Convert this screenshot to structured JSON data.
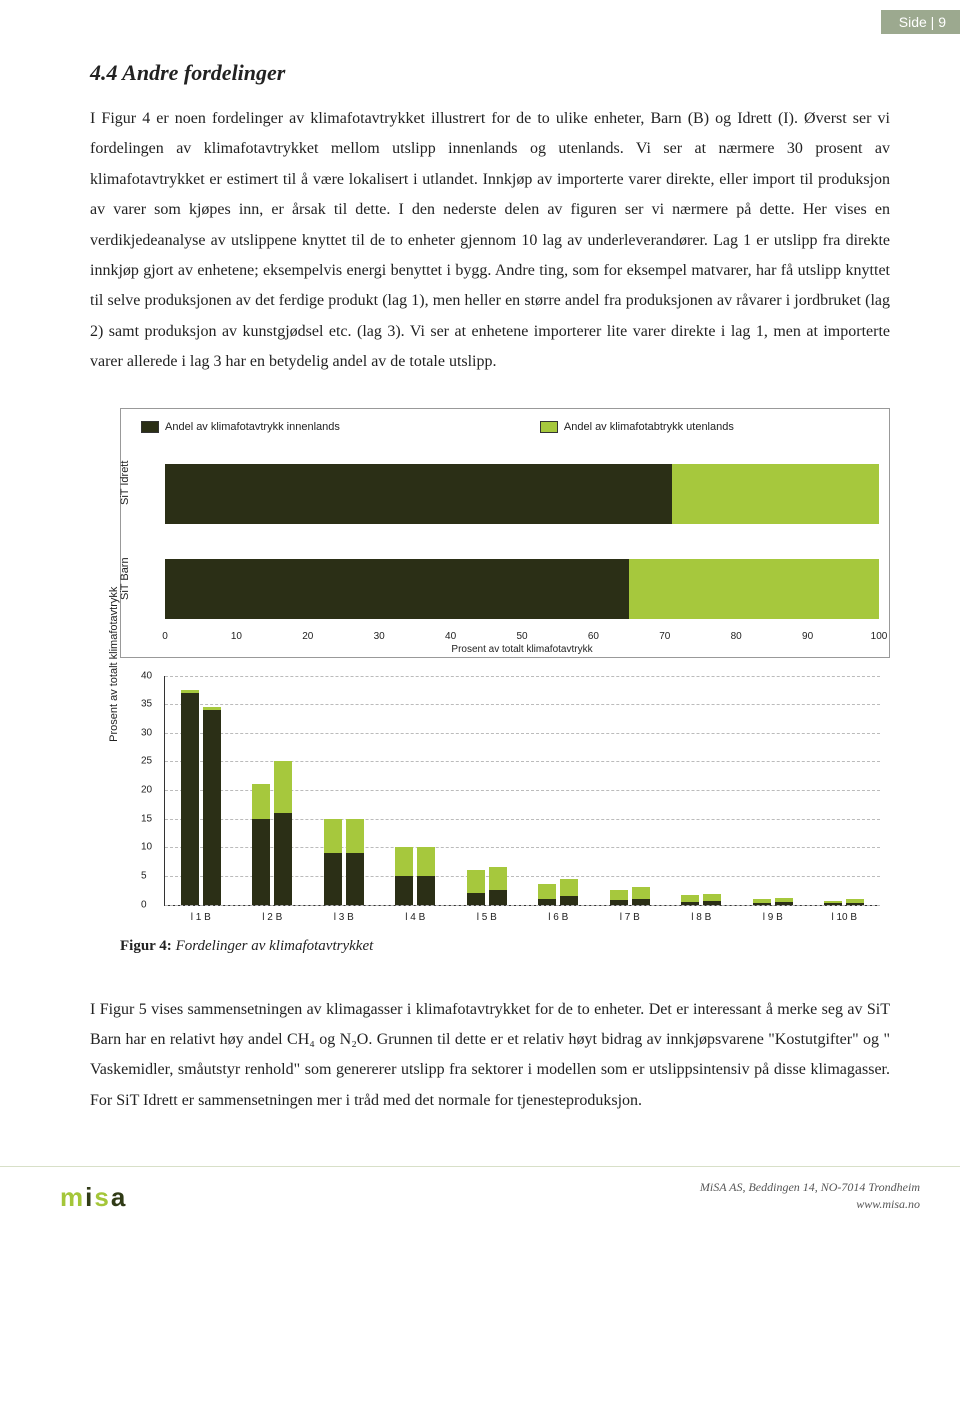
{
  "page_tab": "Side | 9",
  "heading": "4.4 Andre fordelinger",
  "paragraph1": "I Figur 4 er noen fordelinger av klimafotavtrykket illustrert for de to ulike enheter, Barn (B) og Idrett (I). Øverst ser vi fordelingen av klimafotavtrykket mellom utslipp innenlands og utenlands. Vi ser at nærmere 30 prosent av klimafotavtrykket er estimert til å være lokalisert i utlandet. Innkjøp av importerte varer direkte, eller import til produksjon av varer som kjøpes inn, er årsak til dette. I den nederste delen av figuren ser vi nærmere på dette. Her vises en verdikjedeanalyse av utslippene knyttet til de to enheter gjennom 10 lag av underleverandører. Lag 1 er utslipp fra direkte innkjøp gjort av enhetene; eksempelvis energi benyttet i bygg. Andre ting, som for eksempel matvarer, har få utslipp knyttet til selve produksjonen av det ferdige produkt (lag 1), men heller en større andel fra produksjonen av råvarer i jordbruket (lag 2) samt produksjon av kunstgjødsel etc. (lag 3). Vi ser at enhetene importerer lite varer direkte i lag 1, men at importerte varer allerede i lag 3 har en betydelig andel av de totale utslipp.",
  "hchart": {
    "legend": [
      {
        "label": "Andel av klimafotavtrykk innenlands",
        "color": "#2b2f16"
      },
      {
        "label": "Andel av klimafotabtrykk utenlands",
        "color": "#a6c83d"
      }
    ],
    "bars": [
      {
        "label": "SiT Idrett",
        "innenlands": 71,
        "utenlands": 29
      },
      {
        "label": "SiT Barn",
        "innenlands": 65,
        "utenlands": 35
      }
    ],
    "xticks": [
      0,
      10,
      20,
      30,
      40,
      50,
      60,
      70,
      80,
      90,
      100
    ],
    "xtitle": "Prosent av totalt klimafotavtrykk"
  },
  "vchart": {
    "ylabel": "Prosent av totalt klimafotavtrykk",
    "ymax": 40,
    "yticks": [
      0,
      5,
      10,
      15,
      20,
      25,
      30,
      35,
      40
    ],
    "groups": [
      {
        "x": "l 1 B",
        "I_dark": 37,
        "I_green": 0.5,
        "B_dark": 34,
        "B_green": 0.5
      },
      {
        "x": "l 2 B",
        "I_dark": 15,
        "I_green": 6,
        "B_dark": 16,
        "B_green": 9
      },
      {
        "x": "l 3 B",
        "I_dark": 9,
        "I_green": 6,
        "B_dark": 9,
        "B_green": 6
      },
      {
        "x": "l 4 B",
        "I_dark": 5,
        "I_green": 5,
        "B_dark": 5,
        "B_green": 5
      },
      {
        "x": "l 5 B",
        "I_dark": 2,
        "I_green": 4,
        "B_dark": 2.5,
        "B_green": 4
      },
      {
        "x": "l 6 B",
        "I_dark": 1,
        "I_green": 2.5,
        "B_dark": 1.5,
        "B_green": 3
      },
      {
        "x": "l 7 B",
        "I_dark": 0.8,
        "I_green": 1.7,
        "B_dark": 1,
        "B_green": 2
      },
      {
        "x": "l 8 B",
        "I_dark": 0.5,
        "I_green": 1.2,
        "B_dark": 0.6,
        "B_green": 1.3
      },
      {
        "x": "l 9 B",
        "I_dark": 0.3,
        "I_green": 0.7,
        "B_dark": 0.4,
        "B_green": 0.8
      },
      {
        "x": "l 10 B",
        "I_dark": 0.2,
        "I_green": 0.5,
        "B_dark": 0.3,
        "B_green": 0.6
      }
    ],
    "colors": {
      "dark": "#2b2f16",
      "green": "#a6c83d"
    }
  },
  "fig_caption_bold": "Figur 4:",
  "fig_caption_ital": " Fordelinger av klimafotavtrykket",
  "paragraph2": "I Figur 5 vises sammensetningen av klimagasser i klimafotavtrykket for de to enheter. Det er interessant å merke seg av SiT Barn har en relativt høy andel CH₄ og N₂O. Grunnen til dette er et relativ høyt bidrag av innkjøpsvarene \"Kostutgifter\" og \" Vaskemidler, småutstyr renhold\" som genererer utslipp fra sektorer i modellen som er utslippsintensiv på disse klimagasser. For SiT Idrett er sammensetningen mer i tråd med det normale for tjenesteproduksjon.",
  "footer": {
    "logo_text": "misa",
    "line1": "MiSA AS, Beddingen 14, NO-7014 Trondheim",
    "line2": "www.misa.no"
  }
}
